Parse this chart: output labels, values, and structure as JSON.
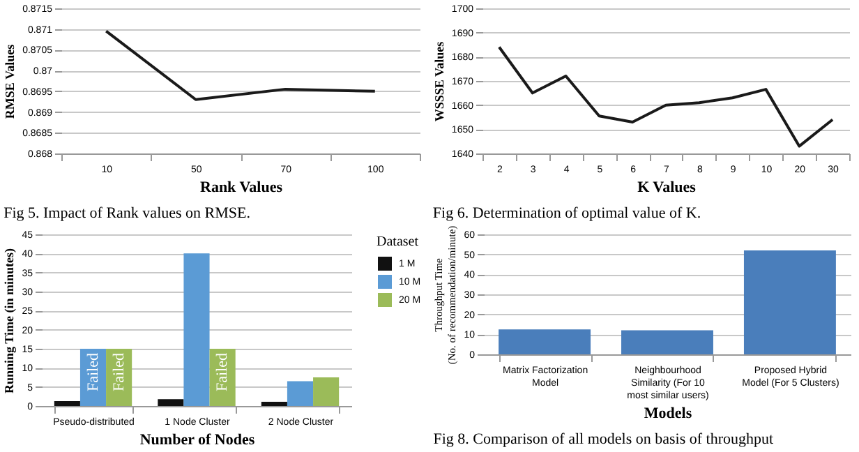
{
  "chart_data": [
    {
      "type": "line",
      "ylabel": "RMSE Values",
      "xlabel": "Rank Values",
      "categories": [
        "10",
        "50",
        "70",
        "100"
      ],
      "series": [
        {
          "color": "#1a1a1a",
          "values": [
            0.87095,
            0.8693,
            0.86955,
            0.8695
          ]
        }
      ],
      "ylim": [
        0.868,
        0.8715
      ],
      "yticks": [
        0.868,
        0.8685,
        0.869,
        0.8695,
        0.87,
        0.8705,
        0.871,
        0.8715
      ],
      "grid": "y",
      "annotations": [
        "Fig 5. Impact of  Rank values on RMSE."
      ]
    },
    {
      "type": "line",
      "ylabel": "WSSSE Values",
      "xlabel": "K Values",
      "categories": [
        "2",
        "3",
        "4",
        "5",
        "6",
        "7",
        "8",
        "9",
        "10",
        "20",
        "30"
      ],
      "series": [
        {
          "color": "#1a1a1a",
          "values": [
            1684,
            1665,
            1672,
            1655.5,
            1653,
            1660,
            1661,
            1663,
            1666.5,
            1643,
            1654
          ]
        }
      ],
      "ylim": [
        1640,
        1700
      ],
      "yticks": [
        1640,
        1650,
        1660,
        1670,
        1680,
        1690,
        1700
      ],
      "grid": "y",
      "annotations": [
        "Fig 6. Determination of optimal value of  K."
      ]
    },
    {
      "type": "bar",
      "ylabel": "Running Time (in minutes)",
      "xlabel": "Number of Nodes",
      "legend_title": "Dataset",
      "legend": "right",
      "categories": [
        "Pseudo-distributed",
        "1 Node  Cluster",
        "2 Node Cluster"
      ],
      "series": [
        {
          "name": "1 M",
          "color": "#111111",
          "values": [
            1.3,
            1.8,
            1.1
          ]
        },
        {
          "name": "10 M",
          "color": "#5b9bd5",
          "values": [
            15,
            40,
            6.5
          ],
          "value_labels": [
            "Failed",
            null,
            null
          ]
        },
        {
          "name": "20 M",
          "color": "#9bbb59",
          "values": [
            15,
            15,
            7.5
          ],
          "value_labels": [
            "Failed",
            "Failed",
            null
          ]
        }
      ],
      "ylim": [
        0,
        45
      ],
      "yticks": [
        0,
        5,
        10,
        15,
        20,
        25,
        30,
        35,
        40,
        45
      ],
      "grid": "y"
    },
    {
      "type": "bar",
      "ylabel": "Throughput Time\n(No. of recommendation/minute)",
      "xlabel": "Models",
      "categories": [
        "Matrix Factorization\nModel",
        "Neighbourhood\nSimilarity (For 10\nmost similar users)",
        "Proposed Hybrid\nModel (For 5 Clusters)"
      ],
      "series": [
        {
          "color": "#4a7ebb",
          "values": [
            12.5,
            12,
            52
          ]
        }
      ],
      "ylim": [
        0,
        60
      ],
      "yticks": [
        0,
        10,
        20,
        30,
        40,
        50,
        60
      ],
      "grid": "y",
      "annotations": [
        "Fig 8. Comparison of all models on basis of throughput"
      ]
    }
  ]
}
